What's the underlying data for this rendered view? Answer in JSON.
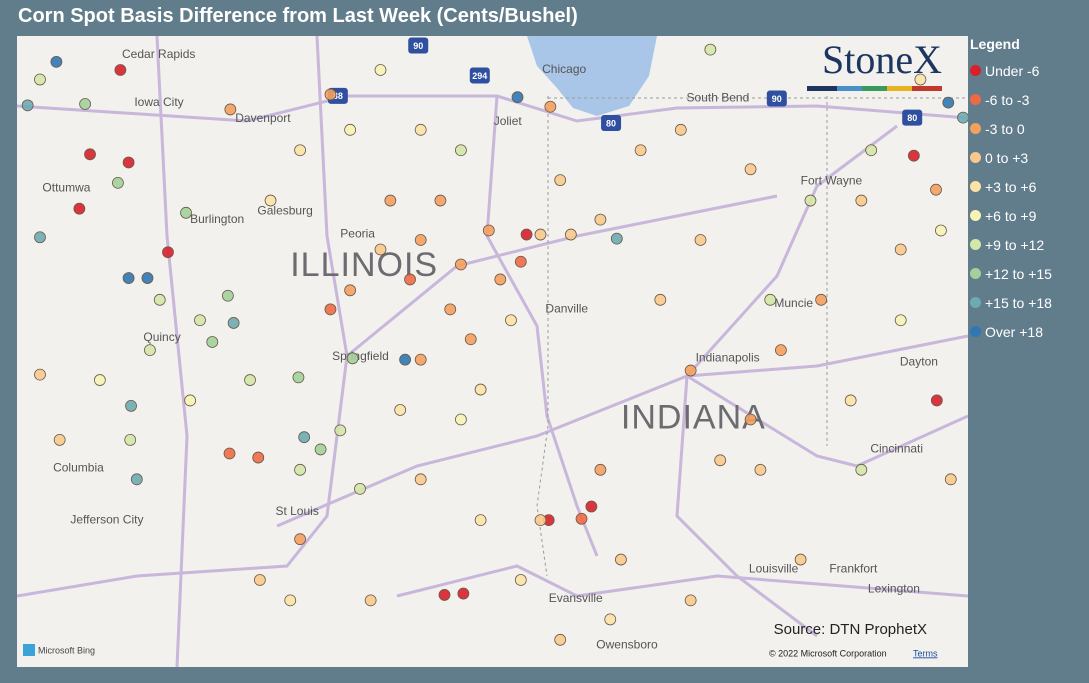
{
  "title": "Corn Spot Basis Difference from Last Week (Cents/Bushel)",
  "legend": {
    "title": "Legend",
    "items": [
      {
        "label": "Under -6",
        "color": "#d7202b"
      },
      {
        "label": "-6 to -3",
        "color": "#ee6a45"
      },
      {
        "label": "-3 to 0",
        "color": "#f5a05e"
      },
      {
        "label": "0 to +3",
        "color": "#f8c98c"
      },
      {
        "label": "+3 to +6",
        "color": "#fbe3a6"
      },
      {
        "label": "+6 to +9",
        "color": "#f6f3b5"
      },
      {
        "label": "+9 to +12",
        "color": "#d3e7a7"
      },
      {
        "label": "+12 to +15",
        "color": "#a3d09a"
      },
      {
        "label": "+15 to +18",
        "color": "#6eaab3"
      },
      {
        "label": "Over +18",
        "color": "#2f78b4"
      }
    ]
  },
  "logo": "StoneX",
  "source": "Source: DTN ProphetX",
  "bing": "Microsoft Bing",
  "copyright": "© 2022 Microsoft Corporation",
  "terms": "Terms",
  "map": {
    "lon_range": [
      -94.31,
      -82.72
    ],
    "lat_range": [
      42.13,
      37.49
    ],
    "labels": [
      {
        "text": "Cedar Rapids",
        "lon": -93.03,
        "lat": 41.99
      },
      {
        "text": "Iowa City",
        "lon": -92.88,
        "lat": 41.64
      },
      {
        "text": "Davenport",
        "lon": -91.65,
        "lat": 41.52
      },
      {
        "text": "Ottumwa",
        "lon": -94.0,
        "lat": 41.01
      },
      {
        "text": "Burlington",
        "lon": -92.2,
        "lat": 40.78
      },
      {
        "text": "Galesburg",
        "lon": -91.38,
        "lat": 40.84
      },
      {
        "text": "Peoria",
        "lon": -90.37,
        "lat": 40.67
      },
      {
        "text": "Quincy",
        "lon": -92.77,
        "lat": 39.91
      },
      {
        "text": "Springfield",
        "lon": -90.47,
        "lat": 39.77
      },
      {
        "text": "Columbia",
        "lon": -93.87,
        "lat": 38.95
      },
      {
        "text": "Jefferson City",
        "lon": -93.66,
        "lat": 38.57
      },
      {
        "text": "St Louis",
        "lon": -91.16,
        "lat": 38.63
      },
      {
        "text": "Chicago",
        "lon": -87.91,
        "lat": 41.88
      },
      {
        "text": "Joliet",
        "lon": -88.5,
        "lat": 41.5
      },
      {
        "text": "South Bend",
        "lon": -86.15,
        "lat": 41.67
      },
      {
        "text": "Fort Wayne",
        "lon": -84.76,
        "lat": 41.06
      },
      {
        "text": "Muncie",
        "lon": -85.08,
        "lat": 40.16
      },
      {
        "text": "Danville",
        "lon": -87.87,
        "lat": 40.12
      },
      {
        "text": "Indianapolis",
        "lon": -86.04,
        "lat": 39.76
      },
      {
        "text": "Dayton",
        "lon": -83.55,
        "lat": 39.73
      },
      {
        "text": "Cincinnati",
        "lon": -83.91,
        "lat": 39.09
      },
      {
        "text": "Louisville",
        "lon": -85.39,
        "lat": 38.21
      },
      {
        "text": "Frankfort",
        "lon": -84.41,
        "lat": 38.21
      },
      {
        "text": "Lexington",
        "lon": -83.94,
        "lat": 38.06
      },
      {
        "text": "Evansville",
        "lon": -87.83,
        "lat": 37.99
      },
      {
        "text": "Owensboro",
        "lon": -87.25,
        "lat": 37.65
      }
    ],
    "states": [
      {
        "text": "ILLINOIS",
        "lon": -90.98,
        "lat": 40.43
      },
      {
        "text": "INDIANA",
        "lon": -86.95,
        "lat": 39.31
      }
    ],
    "shields": [
      {
        "text": "90",
        "lon": -89.42,
        "lat": 42.06
      },
      {
        "text": "294",
        "lon": -88.67,
        "lat": 41.84
      },
      {
        "text": "88",
        "lon": -90.4,
        "lat": 41.69
      },
      {
        "text": "80",
        "lon": -87.07,
        "lat": 41.49
      },
      {
        "text": "90",
        "lon": -85.05,
        "lat": 41.67
      },
      {
        "text": "80",
        "lon": -83.4,
        "lat": 41.53
      }
    ],
    "points": [
      {
        "lon": -93.42,
        "lat": 41.26,
        "category": "Under -6"
      },
      {
        "lon": -92.95,
        "lat": 41.2,
        "category": "Under -6"
      },
      {
        "lon": -93.55,
        "lat": 40.86,
        "category": "Under -6"
      },
      {
        "lon": -93.05,
        "lat": 41.88,
        "category": "Under -6"
      },
      {
        "lon": -88.1,
        "lat": 40.67,
        "category": "Under -6"
      },
      {
        "lon": -83.38,
        "lat": 41.25,
        "category": "Under -6"
      },
      {
        "lon": -83.1,
        "lat": 39.45,
        "category": "Under -6"
      },
      {
        "lon": -87.83,
        "lat": 38.57,
        "category": "Under -6"
      },
      {
        "lon": -87.31,
        "lat": 38.67,
        "category": "Under -6"
      },
      {
        "lon": -89.1,
        "lat": 38.02,
        "category": "Under -6"
      },
      {
        "lon": -88.87,
        "lat": 38.03,
        "category": "Under -6"
      },
      {
        "lon": -92.47,
        "lat": 40.54,
        "category": "Under -6"
      },
      {
        "lon": -91.72,
        "lat": 39.06,
        "category": "-6 to -3"
      },
      {
        "lon": -91.37,
        "lat": 39.03,
        "category": "-6 to -3"
      },
      {
        "lon": -87.43,
        "lat": 38.58,
        "category": "-6 to -3"
      },
      {
        "lon": -82.96,
        "lat": 41.64,
        "category": "Over +18"
      },
      {
        "lon": -88.21,
        "lat": 41.68,
        "category": "Over +18"
      },
      {
        "lon": -89.58,
        "lat": 39.75,
        "category": "Over +18"
      },
      {
        "lon": -93.83,
        "lat": 41.94,
        "category": "Over +18"
      },
      {
        "lon": -92.95,
        "lat": 40.35,
        "category": "Over +18"
      },
      {
        "lon": -92.72,
        "lat": 40.35,
        "category": "Over +18"
      },
      {
        "lon": -94.18,
        "lat": 41.62,
        "category": "+15 to +18"
      },
      {
        "lon": -90.81,
        "lat": 39.18,
        "category": "+15 to +18"
      },
      {
        "lon": -92.85,
        "lat": 38.87,
        "category": "+15 to +18"
      },
      {
        "lon": -87.0,
        "lat": 40.64,
        "category": "+15 to +18"
      },
      {
        "lon": -91.67,
        "lat": 40.02,
        "category": "+15 to +18"
      },
      {
        "lon": -92.92,
        "lat": 39.41,
        "category": "+15 to +18"
      },
      {
        "lon": -82.78,
        "lat": 41.53,
        "category": "+15 to +18"
      },
      {
        "lon": -94.03,
        "lat": 40.65,
        "category": "+15 to +18"
      },
      {
        "lon": -93.48,
        "lat": 41.63,
        "category": "+12 to +15"
      },
      {
        "lon": -93.08,
        "lat": 41.05,
        "category": "+12 to +15"
      },
      {
        "lon": -91.93,
        "lat": 39.88,
        "category": "+12 to +15"
      },
      {
        "lon": -90.88,
        "lat": 39.62,
        "category": "+12 to +15"
      },
      {
        "lon": -90.61,
        "lat": 39.09,
        "category": "+12 to +15"
      },
      {
        "lon": -90.22,
        "lat": 39.76,
        "category": "+12 to +15"
      },
      {
        "lon": -92.25,
        "lat": 40.83,
        "category": "+12 to +15"
      },
      {
        "lon": -91.74,
        "lat": 40.22,
        "category": "+12 to +15"
      },
      {
        "lon": -89.76,
        "lat": 40.92,
        "category": "-3 to 0"
      },
      {
        "lon": -89.39,
        "lat": 40.63,
        "category": "-3 to 0"
      },
      {
        "lon": -88.9,
        "lat": 40.45,
        "category": "-3 to 0"
      },
      {
        "lon": -88.42,
        "lat": 40.34,
        "category": "-3 to 0"
      },
      {
        "lon": -88.17,
        "lat": 40.47,
        "category": "-6 to -3"
      },
      {
        "lon": -88.78,
        "lat": 39.9,
        "category": "-3 to 0"
      },
      {
        "lon": -90.25,
        "lat": 40.26,
        "category": "-3 to 0"
      },
      {
        "lon": -90.49,
        "lat": 40.12,
        "category": "-6 to -3"
      },
      {
        "lon": -89.15,
        "lat": 40.92,
        "category": "-3 to 0"
      },
      {
        "lon": -89.52,
        "lat": 40.34,
        "category": "-6 to -3"
      },
      {
        "lon": -88.56,
        "lat": 40.7,
        "category": "-3 to 0"
      },
      {
        "lon": -87.93,
        "lat": 40.67,
        "category": "0 to +3"
      },
      {
        "lon": -87.56,
        "lat": 40.67,
        "category": "0 to +3"
      },
      {
        "lon": -85.98,
        "lat": 40.63,
        "category": "0 to +3"
      },
      {
        "lon": -86.22,
        "lat": 41.44,
        "category": "0 to +3"
      },
      {
        "lon": -85.37,
        "lat": 41.15,
        "category": "0 to +3"
      },
      {
        "lon": -84.51,
        "lat": 40.19,
        "category": "-3 to 0"
      },
      {
        "lon": -84.02,
        "lat": 40.92,
        "category": "0 to +3"
      },
      {
        "lon": -83.54,
        "lat": 40.56,
        "category": "0 to +3"
      },
      {
        "lon": -83.11,
        "lat": 41.0,
        "category": "-3 to 0"
      },
      {
        "lon": -86.47,
        "lat": 40.19,
        "category": "0 to +3"
      },
      {
        "lon": -86.1,
        "lat": 39.67,
        "category": "-3 to 0"
      },
      {
        "lon": -85.74,
        "lat": 39.01,
        "category": "0 to +3"
      },
      {
        "lon": -85.0,
        "lat": 39.82,
        "category": "-3 to 0"
      },
      {
        "lon": -87.2,
        "lat": 38.94,
        "category": "-3 to 0"
      },
      {
        "lon": -87.93,
        "lat": 38.57,
        "category": "0 to +3"
      },
      {
        "lon": -89.39,
        "lat": 38.87,
        "category": "0 to +3"
      },
      {
        "lon": -90.86,
        "lat": 38.43,
        "category": "-3 to 0"
      },
      {
        "lon": -91.35,
        "lat": 38.13,
        "category": "0 to +3"
      },
      {
        "lon": -90.0,
        "lat": 37.98,
        "category": "0 to +3"
      },
      {
        "lon": -87.69,
        "lat": 37.69,
        "category": "0 to +3"
      },
      {
        "lon": -86.95,
        "lat": 38.28,
        "category": "0 to +3"
      },
      {
        "lon": -85.25,
        "lat": 38.94,
        "category": "0 to +3"
      },
      {
        "lon": -94.03,
        "lat": 39.64,
        "category": "0 to +3"
      },
      {
        "lon": -91.71,
        "lat": 41.59,
        "category": "-3 to 0"
      },
      {
        "lon": -90.49,
        "lat": 41.7,
        "category": "-3 to 0"
      },
      {
        "lon": -87.81,
        "lat": 41.61,
        "category": "-3 to 0"
      },
      {
        "lon": -89.88,
        "lat": 41.88,
        "category": "+6 to +9"
      },
      {
        "lon": -89.39,
        "lat": 41.44,
        "category": "+3 to +6"
      },
      {
        "lon": -88.9,
        "lat": 41.29,
        "category": "+9 to +12"
      },
      {
        "lon": -90.86,
        "lat": 41.29,
        "category": "+3 to +6"
      },
      {
        "lon": -91.22,
        "lat": 40.92,
        "category": "+3 to +6"
      },
      {
        "lon": -90.25,
        "lat": 41.44,
        "category": "+6 to +9"
      },
      {
        "lon": -92.08,
        "lat": 40.04,
        "category": "+9 to +12"
      },
      {
        "lon": -92.57,
        "lat": 40.19,
        "category": "+9 to +12"
      },
      {
        "lon": -91.47,
        "lat": 39.6,
        "category": "+9 to +12"
      },
      {
        "lon": -90.37,
        "lat": 39.23,
        "category": "+9 to +12"
      },
      {
        "lon": -90.13,
        "lat": 38.8,
        "category": "+9 to +12"
      },
      {
        "lon": -90.86,
        "lat": 38.94,
        "category": "+9 to +12"
      },
      {
        "lon": -88.9,
        "lat": 39.31,
        "category": "+6 to +9"
      },
      {
        "lon": -88.66,
        "lat": 39.53,
        "category": "+3 to +6"
      },
      {
        "lon": -89.64,
        "lat": 39.38,
        "category": "+3 to +6"
      },
      {
        "lon": -88.66,
        "lat": 38.57,
        "category": "+3 to +6"
      },
      {
        "lon": -88.17,
        "lat": 38.13,
        "category": "+3 to +6"
      },
      {
        "lon": -85.86,
        "lat": 42.03,
        "category": "+9 to +12"
      },
      {
        "lon": -85.13,
        "lat": 40.19,
        "category": "+9 to +12"
      },
      {
        "lon": -84.64,
        "lat": 40.92,
        "category": "+9 to +12"
      },
      {
        "lon": -83.9,
        "lat": 41.29,
        "category": "+9 to +12"
      },
      {
        "lon": -84.02,
        "lat": 38.94,
        "category": "+9 to +12"
      },
      {
        "lon": -84.15,
        "lat": 39.45,
        "category": "+3 to +6"
      },
      {
        "lon": -83.54,
        "lat": 40.04,
        "category": "+6 to +9"
      },
      {
        "lon": -93.79,
        "lat": 39.16,
        "category": "0 to +3"
      },
      {
        "lon": -93.3,
        "lat": 39.6,
        "category": "+6 to +9"
      },
      {
        "lon": -92.93,
        "lat": 39.16,
        "category": "+9 to +12"
      },
      {
        "lon": -92.69,
        "lat": 39.82,
        "category": "+9 to +12"
      },
      {
        "lon": -92.2,
        "lat": 39.45,
        "category": "+6 to +9"
      },
      {
        "lon": -94.03,
        "lat": 41.81,
        "category": "+9 to +12"
      },
      {
        "lon": -89.39,
        "lat": 39.75,
        "category": "-3 to 0"
      },
      {
        "lon": -89.03,
        "lat": 40.12,
        "category": "-3 to 0"
      },
      {
        "lon": -88.29,
        "lat": 40.04,
        "category": "+3 to +6"
      },
      {
        "lon": -89.88,
        "lat": 40.56,
        "category": "0 to +3"
      },
      {
        "lon": -87.69,
        "lat": 41.07,
        "category": "0 to +3"
      },
      {
        "lon": -87.2,
        "lat": 40.78,
        "category": "0 to +3"
      },
      {
        "lon": -86.71,
        "lat": 41.29,
        "category": "0 to +3"
      },
      {
        "lon": -83.3,
        "lat": 41.81,
        "category": "+3 to +6"
      },
      {
        "lon": -83.05,
        "lat": 40.7,
        "category": "+6 to +9"
      },
      {
        "lon": -85.37,
        "lat": 39.31,
        "category": "-3 to 0"
      },
      {
        "lon": -84.76,
        "lat": 38.28,
        "category": "0 to +3"
      },
      {
        "lon": -82.93,
        "lat": 38.87,
        "category": "0 to +3"
      },
      {
        "lon": -86.1,
        "lat": 37.98,
        "category": "0 to +3"
      },
      {
        "lon": -87.08,
        "lat": 37.84,
        "category": "+3 to +6"
      },
      {
        "lon": -90.98,
        "lat": 37.98,
        "category": "+3 to +6"
      }
    ]
  }
}
